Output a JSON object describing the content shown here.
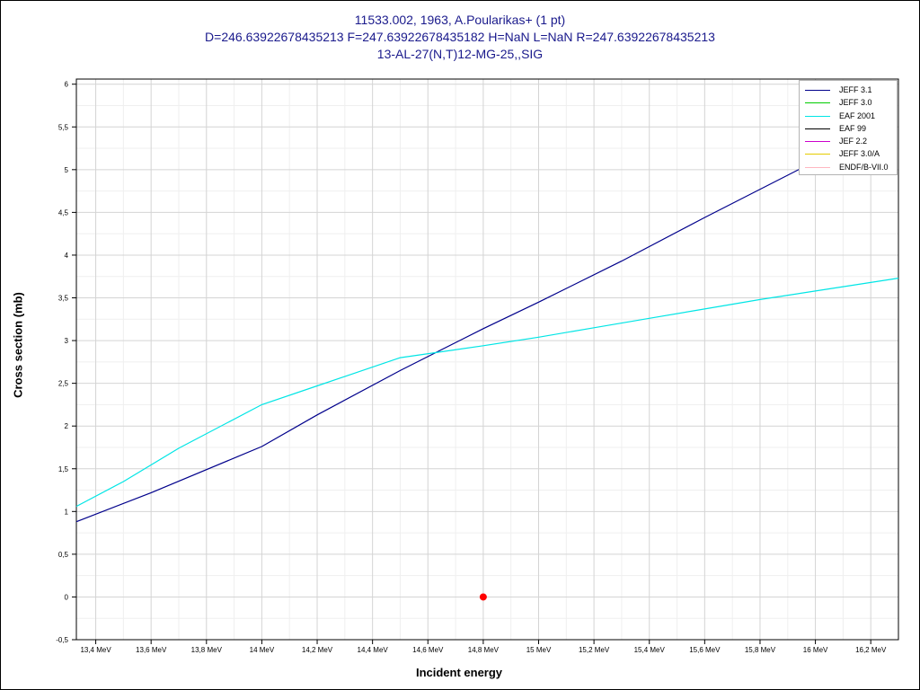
{
  "titles": {
    "line1": "11533.002, 1963, A.Poularikas+ (1 pt)",
    "line2": "D=246.63922678435213 F=247.63922678435182 H=NaN L=NaN R=247.63922678435213",
    "line3": "13-AL-27(N,T)12-MG-25,,SIG"
  },
  "chart_data": {
    "type": "line",
    "xlabel": "Incident energy",
    "ylabel": "Cross section (mb)",
    "xlim": [
      13.33,
      16.3
    ],
    "ylim": [
      -0.5,
      6.06
    ],
    "grid": true,
    "legend_position": "top-right",
    "x_ticks": [
      {
        "v": 13.4,
        "label": "13,4 MeV"
      },
      {
        "v": 13.6,
        "label": "13,6 MeV"
      },
      {
        "v": 13.8,
        "label": "13,8 MeV"
      },
      {
        "v": 14.0,
        "label": "14 MeV"
      },
      {
        "v": 14.2,
        "label": "14,2 MeV"
      },
      {
        "v": 14.4,
        "label": "14,4 MeV"
      },
      {
        "v": 14.6,
        "label": "14,6 MeV"
      },
      {
        "v": 14.8,
        "label": "14,8 MeV"
      },
      {
        "v": 15.0,
        "label": "15 MeV"
      },
      {
        "v": 15.2,
        "label": "15,2 MeV"
      },
      {
        "v": 15.4,
        "label": "15,4 MeV"
      },
      {
        "v": 15.6,
        "label": "15,6 MeV"
      },
      {
        "v": 15.8,
        "label": "15,8 MeV"
      },
      {
        "v": 16.0,
        "label": "16 MeV"
      },
      {
        "v": 16.2,
        "label": "16,2 MeV"
      }
    ],
    "y_ticks": [
      {
        "v": -0.5,
        "label": "-0,5"
      },
      {
        "v": 0,
        "label": "0"
      },
      {
        "v": 0.5,
        "label": "0,5"
      },
      {
        "v": 1,
        "label": "1"
      },
      {
        "v": 1.5,
        "label": "1,5"
      },
      {
        "v": 2,
        "label": "2"
      },
      {
        "v": 2.5,
        "label": "2,5"
      },
      {
        "v": 3,
        "label": "3"
      },
      {
        "v": 3.5,
        "label": "3,5"
      },
      {
        "v": 4,
        "label": "4"
      },
      {
        "v": 4.5,
        "label": "4,5"
      },
      {
        "v": 5,
        "label": "5"
      },
      {
        "v": 5.5,
        "label": "5,5"
      },
      {
        "v": 6,
        "label": "6"
      }
    ],
    "series": [
      {
        "name": "JEFF 3.1",
        "color": "#00008b",
        "x": [
          13.33,
          13.6,
          14.0,
          14.2,
          14.5,
          14.8,
          15.0,
          15.3,
          15.6,
          16.0,
          16.04
        ],
        "y": [
          0.88,
          1.22,
          1.76,
          2.13,
          2.65,
          3.14,
          3.45,
          3.93,
          4.44,
          5.1,
          5.15
        ]
      },
      {
        "name": "JEFF 3.0",
        "color": "#00cc00",
        "x": [],
        "y": []
      },
      {
        "name": "EAF 2001",
        "color": "#00e5e5",
        "x": [
          13.33,
          13.5,
          13.7,
          14.0,
          14.2,
          14.5,
          14.8,
          15.0,
          15.2,
          15.4,
          15.6,
          15.8,
          16.0,
          16.3
        ],
        "y": [
          1.06,
          1.35,
          1.74,
          2.25,
          2.47,
          2.8,
          2.94,
          3.04,
          3.15,
          3.26,
          3.37,
          3.48,
          3.58,
          3.73
        ]
      },
      {
        "name": "EAF 99",
        "color": "#000000",
        "x": [],
        "y": []
      },
      {
        "name": "JEF 2.2",
        "color": "#cc00cc",
        "x": [],
        "y": []
      },
      {
        "name": "JEFF 3.0/A",
        "color": "#e5cc00",
        "x": [],
        "y": []
      },
      {
        "name": "ENDF/B-VII.0",
        "color": "#ffb6c1",
        "x": [],
        "y": []
      }
    ],
    "experimental_points": [
      {
        "x": 14.8,
        "y": 0,
        "color": "#ff0000"
      }
    ]
  }
}
